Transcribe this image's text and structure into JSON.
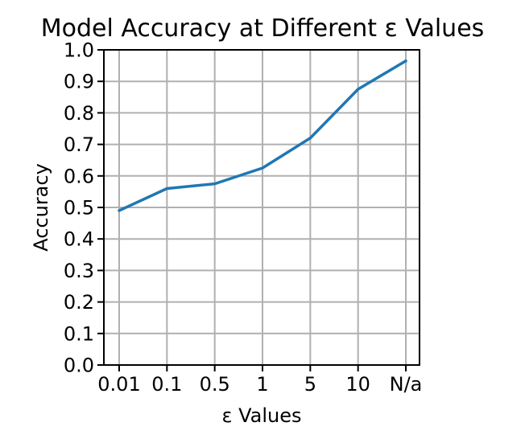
{
  "chart_data": {
    "type": "line",
    "title": "Model Accuracy at Different ε Values",
    "xlabel": "ε Values",
    "ylabel": "Accuracy",
    "categories": [
      "0.01",
      "0.1",
      "0.5",
      "1",
      "5",
      "10",
      "N/a"
    ],
    "series": [
      {
        "name": "Accuracy",
        "color": "#1f77b4",
        "values": [
          0.49,
          0.56,
          0.575,
          0.625,
          0.72,
          0.875,
          0.965
        ]
      }
    ],
    "ylim": [
      0,
      1.0
    ],
    "yticks": [
      "0.0",
      "0.1",
      "0.2",
      "0.3",
      "0.4",
      "0.5",
      "0.6",
      "0.7",
      "0.8",
      "0.9",
      "1.0"
    ],
    "grid": true,
    "legend": false
  }
}
